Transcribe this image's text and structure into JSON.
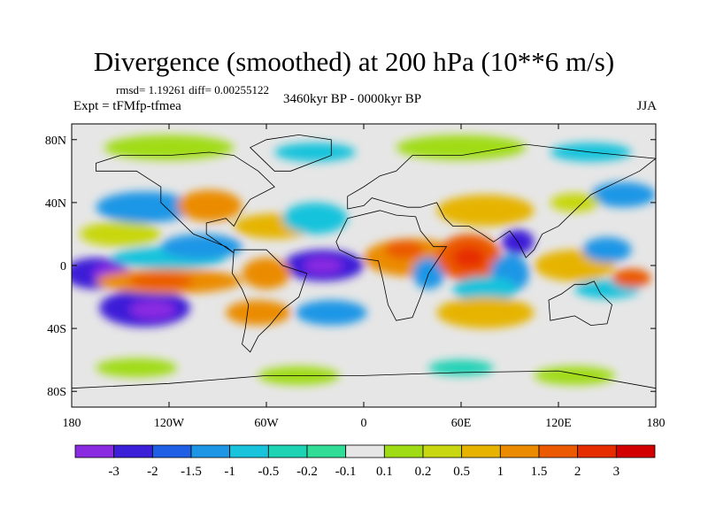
{
  "title": "Divergence (smoothed) at 200 hPa (10**6 m/s)",
  "stats": "rmsd= 1.19261 diff= 0.00255122",
  "period": "3460kyr BP - 0000kyr BP",
  "experiment": "Expt = tFMfp-tfmea",
  "season": "JJA",
  "lat_labels": [
    "80N",
    "40N",
    "0",
    "40S",
    "80S"
  ],
  "lon_labels": [
    "180",
    "120W",
    "60W",
    "0",
    "60E",
    "120E",
    "180"
  ],
  "colorbar": {
    "tick_labels": [
      "-3",
      "-2",
      "-1.5",
      "-1",
      "-0.5",
      "-0.2",
      "-0.1",
      "0.1",
      "0.2",
      "0.5",
      "1",
      "1.5",
      "2",
      "3"
    ],
    "colors": [
      "#8a2be2",
      "#3c1fd8",
      "#1e5fe6",
      "#1e96e6",
      "#19c3dc",
      "#1ed2b4",
      "#30dc96",
      "#e6e6e6",
      "#a0dc14",
      "#c8d70f",
      "#e6b400",
      "#eb8c00",
      "#eb5a00",
      "#e62d00",
      "#d20000"
    ]
  },
  "map_data": {
    "lat_range": [
      -90,
      90
    ],
    "lon_range": [
      -180,
      180
    ],
    "background": "#e6e6e6",
    "blobs": [
      {
        "name": "pac-neg-west",
        "lon": -165,
        "lat": -5,
        "rlon": 20,
        "rlat": 10,
        "level": -2
      },
      {
        "name": "pac-neg-core",
        "lon": -155,
        "lat": -5,
        "rlon": 12,
        "rlat": 6,
        "level": -3
      },
      {
        "name": "pac-neg-south",
        "lon": -135,
        "lat": -27,
        "rlon": 28,
        "rlat": 12,
        "level": -2
      },
      {
        "name": "pac-neg-south-core",
        "lon": -130,
        "lat": -28,
        "rlon": 14,
        "rlat": 6,
        "level": -3
      },
      {
        "name": "pac-neg-eq",
        "lon": -120,
        "lat": 5,
        "rlon": 35,
        "rlat": 7,
        "level": -0.5
      },
      {
        "name": "pac-pos-eq",
        "lon": -120,
        "lat": -10,
        "rlon": 45,
        "rlat": 8,
        "level": 1.5
      },
      {
        "name": "pac-pos-eq-core",
        "lon": -125,
        "lat": -10,
        "rlon": 20,
        "rlat": 5,
        "level": 2
      },
      {
        "name": "pac-pos-north",
        "lon": -150,
        "lat": 20,
        "rlon": 25,
        "rlat": 8,
        "level": 0.5
      },
      {
        "name": "pac-neg-north",
        "lon": -135,
        "lat": 37,
        "rlon": 30,
        "rlat": 10,
        "level": -1
      },
      {
        "name": "pac-pos-ne",
        "lon": -95,
        "lat": 38,
        "rlon": 20,
        "rlat": 10,
        "level": 1.5
      },
      {
        "name": "na-neg",
        "lon": -100,
        "lat": 12,
        "rlon": 25,
        "rlat": 8,
        "level": -1
      },
      {
        "name": "atl-neg-core",
        "lon": -25,
        "lat": 0,
        "rlon": 25,
        "rlat": 10,
        "level": -2
      },
      {
        "name": "atl-neg-center",
        "lon": -25,
        "lat": 0,
        "rlon": 12,
        "rlat": 5,
        "level": -3
      },
      {
        "name": "sam-pos",
        "lon": -60,
        "lat": -5,
        "rlon": 15,
        "rlat": 10,
        "level": 1.5
      },
      {
        "name": "atl-pos-north",
        "lon": -55,
        "lat": 25,
        "rlon": 25,
        "rlat": 8,
        "level": 1
      },
      {
        "name": "atl-neg-north",
        "lon": -30,
        "lat": 30,
        "rlon": 20,
        "rlat": 10,
        "level": -0.5
      },
      {
        "name": "sa-pos-south",
        "lon": -65,
        "lat": -30,
        "rlon": 20,
        "rlat": 8,
        "level": 1.5
      },
      {
        "name": "atl-neg-south",
        "lon": -20,
        "lat": -30,
        "rlon": 22,
        "rlat": 8,
        "level": -1
      },
      {
        "name": "afr-pos",
        "lon": 30,
        "lat": 5,
        "rlon": 30,
        "rlat": 12,
        "level": 1.5
      },
      {
        "name": "afr-pos-core",
        "lon": 25,
        "lat": 10,
        "rlon": 12,
        "rlat": 6,
        "level": 2
      },
      {
        "name": "africa-neg",
        "lon": 40,
        "lat": -5,
        "rlon": 10,
        "rlat": 10,
        "level": -1
      },
      {
        "name": "io-pos",
        "lon": 65,
        "lat": 5,
        "rlon": 20,
        "rlat": 15,
        "level": 2
      },
      {
        "name": "io-pos-core",
        "lon": 65,
        "lat": 5,
        "rlon": 10,
        "rlat": 7,
        "level": 3
      },
      {
        "name": "io-neg-east",
        "lon": 90,
        "lat": -5,
        "rlon": 12,
        "rlat": 12,
        "level": -1
      },
      {
        "name": "io-neg-south",
        "lon": 75,
        "lat": -15,
        "rlon": 20,
        "rlat": 8,
        "level": -0.5
      },
      {
        "name": "io-pos-south",
        "lon": 75,
        "lat": -30,
        "rlon": 30,
        "rlat": 10,
        "level": 1
      },
      {
        "name": "asia-pos",
        "lon": 75,
        "lat": 35,
        "rlon": 30,
        "rlat": 10,
        "level": 1
      },
      {
        "name": "asia-neg",
        "lon": 95,
        "lat": 15,
        "rlon": 10,
        "rlat": 8,
        "level": -2
      },
      {
        "name": "wp-pos",
        "lon": 130,
        "lat": 0,
        "rlon": 25,
        "rlat": 10,
        "level": 1
      },
      {
        "name": "wp-neg",
        "lon": 150,
        "lat": 10,
        "rlon": 15,
        "rlat": 8,
        "level": -1
      },
      {
        "name": "wp-neg-south",
        "lon": 150,
        "lat": -15,
        "rlon": 20,
        "rlat": 6,
        "level": -0.5
      },
      {
        "name": "wp-pos-south",
        "lon": 165,
        "lat": -8,
        "rlon": 12,
        "rlat": 6,
        "level": 2
      },
      {
        "name": "np-neg",
        "lon": 160,
        "lat": 45,
        "rlon": 20,
        "rlat": 8,
        "level": -1
      },
      {
        "name": "np-pos",
        "lon": 130,
        "lat": 40,
        "rlon": 15,
        "rlat": 6,
        "level": 0.5
      },
      {
        "name": "arctic-green",
        "lon": -120,
        "lat": 75,
        "rlon": 40,
        "rlat": 8,
        "level": 0.2
      },
      {
        "name": "arctic-blue",
        "lon": -30,
        "lat": 72,
        "rlon": 25,
        "rlat": 6,
        "level": -0.5
      },
      {
        "name": "arctic-green2",
        "lon": 60,
        "lat": 75,
        "rlon": 40,
        "rlat": 8,
        "level": 0.2
      },
      {
        "name": "arctic-blue2",
        "lon": 140,
        "lat": 72,
        "rlon": 25,
        "rlat": 6,
        "level": -0.5
      },
      {
        "name": "so-green1",
        "lon": -140,
        "lat": -65,
        "rlon": 25,
        "rlat": 6,
        "level": 0.2
      },
      {
        "name": "so-green2",
        "lon": -40,
        "lat": -70,
        "rlon": 25,
        "rlat": 6,
        "level": 0.2
      },
      {
        "name": "so-cyan",
        "lon": 60,
        "lat": -65,
        "rlon": 20,
        "rlat": 5,
        "level": -0.2
      },
      {
        "name": "so-green3",
        "lon": 130,
        "lat": -70,
        "rlon": 25,
        "rlat": 6,
        "level": 0.2
      }
    ],
    "land": [
      {
        "name": "north-america",
        "coords": [
          [
            -165,
            65
          ],
          [
            -150,
            70
          ],
          [
            -120,
            70
          ],
          [
            -95,
            72
          ],
          [
            -80,
            70
          ],
          [
            -65,
            60
          ],
          [
            -55,
            50
          ],
          [
            -70,
            42
          ],
          [
            -75,
            35
          ],
          [
            -80,
            25
          ],
          [
            -85,
            30
          ],
          [
            -97,
            27
          ],
          [
            -97,
            20
          ],
          [
            -90,
            15
          ],
          [
            -80,
            8
          ],
          [
            -85,
            12
          ],
          [
            -105,
            20
          ],
          [
            -115,
            30
          ],
          [
            -125,
            40
          ],
          [
            -125,
            50
          ],
          [
            -140,
            60
          ],
          [
            -165,
            60
          ]
        ]
      },
      {
        "name": "south-america",
        "coords": [
          [
            -80,
            10
          ],
          [
            -60,
            10
          ],
          [
            -50,
            0
          ],
          [
            -35,
            -5
          ],
          [
            -40,
            -20
          ],
          [
            -50,
            -28
          ],
          [
            -58,
            -38
          ],
          [
            -65,
            -45
          ],
          [
            -70,
            -55
          ],
          [
            -75,
            -50
          ],
          [
            -73,
            -40
          ],
          [
            -71,
            -25
          ],
          [
            -75,
            -15
          ],
          [
            -81,
            -5
          ]
        ]
      },
      {
        "name": "africa",
        "coords": [
          [
            -17,
            15
          ],
          [
            -10,
            30
          ],
          [
            10,
            35
          ],
          [
            20,
            32
          ],
          [
            32,
            31
          ],
          [
            35,
            22
          ],
          [
            43,
            12
          ],
          [
            51,
            12
          ],
          [
            40,
            -5
          ],
          [
            35,
            -20
          ],
          [
            30,
            -33
          ],
          [
            20,
            -35
          ],
          [
            15,
            -25
          ],
          [
            12,
            -10
          ],
          [
            9,
            3
          ],
          [
            -5,
            5
          ],
          [
            -15,
            10
          ]
        ]
      },
      {
        "name": "eurasia",
        "coords": [
          [
            -10,
            36
          ],
          [
            -10,
            44
          ],
          [
            0,
            50
          ],
          [
            10,
            57
          ],
          [
            20,
            60
          ],
          [
            30,
            70
          ],
          [
            60,
            70
          ],
          [
            100,
            77
          ],
          [
            140,
            72
          ],
          [
            180,
            68
          ],
          [
            170,
            60
          ],
          [
            160,
            55
          ],
          [
            140,
            45
          ],
          [
            130,
            35
          ],
          [
            120,
            25
          ],
          [
            110,
            20
          ],
          [
            105,
            10
          ],
          [
            100,
            5
          ],
          [
            95,
            15
          ],
          [
            90,
            22
          ],
          [
            80,
            15
          ],
          [
            73,
            20
          ],
          [
            65,
            25
          ],
          [
            55,
            25
          ],
          [
            50,
            30
          ],
          [
            45,
            40
          ],
          [
            35,
            37
          ],
          [
            27,
            37
          ],
          [
            15,
            40
          ],
          [
            5,
            43
          ],
          [
            0,
            38
          ]
        ]
      },
      {
        "name": "greenland",
        "coords": [
          [
            -55,
            60
          ],
          [
            -45,
            60
          ],
          [
            -20,
            70
          ],
          [
            -20,
            80
          ],
          [
            -40,
            83
          ],
          [
            -60,
            80
          ],
          [
            -70,
            75
          ]
        ]
      },
      {
        "name": "australia",
        "coords": [
          [
            114,
            -22
          ],
          [
            122,
            -18
          ],
          [
            130,
            -12
          ],
          [
            137,
            -12
          ],
          [
            142,
            -10
          ],
          [
            146,
            -18
          ],
          [
            153,
            -25
          ],
          [
            150,
            -37
          ],
          [
            140,
            -38
          ],
          [
            130,
            -32
          ],
          [
            115,
            -35
          ]
        ]
      },
      {
        "name": "antarctic-edge",
        "coords": [
          [
            -180,
            -78
          ],
          [
            -120,
            -75
          ],
          [
            -60,
            -70
          ],
          [
            0,
            -70
          ],
          [
            60,
            -68
          ],
          [
            120,
            -67
          ],
          [
            180,
            -78
          ],
          [
            180,
            -90
          ],
          [
            -180,
            -90
          ]
        ]
      }
    ]
  }
}
